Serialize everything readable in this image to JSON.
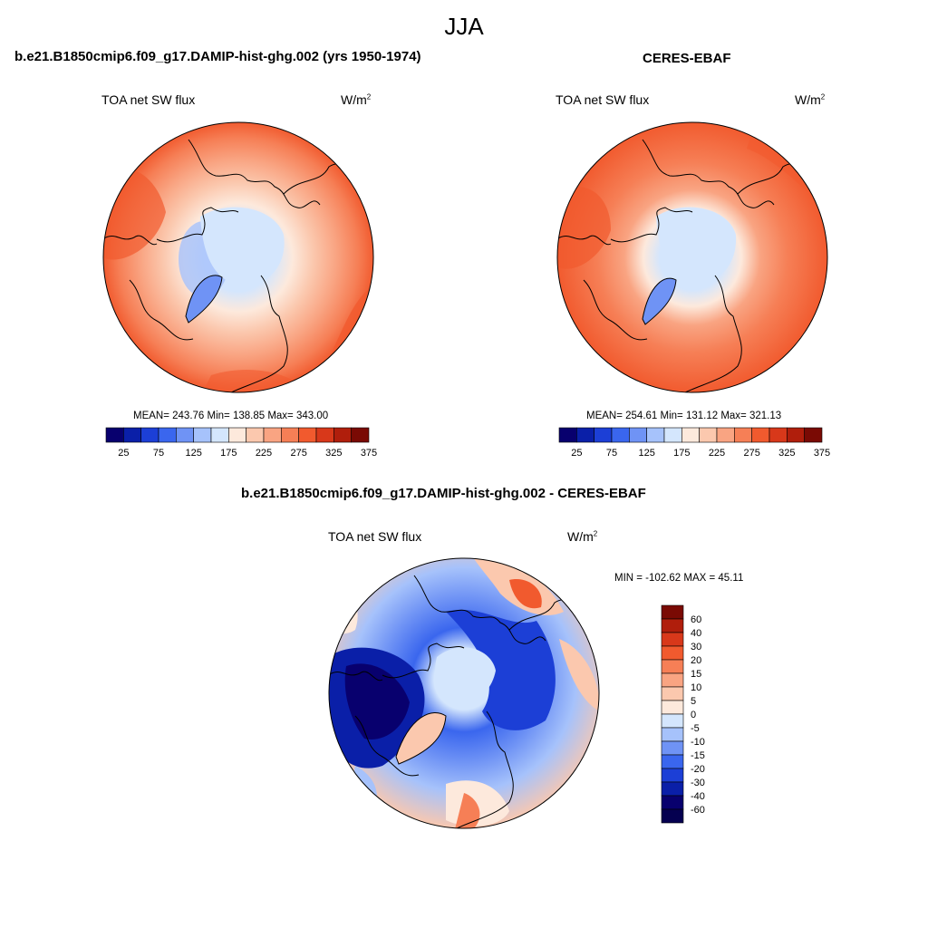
{
  "season": "JJA",
  "panels": [
    {
      "title": "b.e21.B1850cmip6.f09_g17.DAMIP-hist-ghg.002 (yrs 1950-1974)",
      "left_label": "TOA net SW flux",
      "units_base": "W/m",
      "units_exp": "2",
      "stats": "MEAN= 243.76  Min= 138.85  Max= 343.00"
    },
    {
      "title": "CERES-EBAF",
      "left_label": "TOA net SW flux",
      "units_base": "W/m",
      "units_exp": "2",
      "stats": "MEAN= 254.61  Min= 131.12  Max= 321.13"
    },
    {
      "title": "b.e21.B1850cmip6.f09_g17.DAMIP-hist-ghg.002 - CERES-EBAF",
      "left_label": "TOA net SW flux",
      "units_base": "W/m",
      "units_exp": "2",
      "stats": "MIN = -102.62 MAX =  45.11"
    }
  ],
  "colorbar_abs": {
    "tick_labels": [
      "25",
      "75",
      "125",
      "175",
      "225",
      "275",
      "325",
      "375"
    ],
    "colors": [
      "#08006e",
      "#0a1fa8",
      "#1c3fd6",
      "#3a66ee",
      "#6f93f5",
      "#a6c2fb",
      "#d4e6fd",
      "#fde9dc",
      "#fbc8ae",
      "#f9a482",
      "#f67f56",
      "#f15a2e",
      "#d8381a",
      "#b01e0c",
      "#7a0a04"
    ]
  },
  "colorbar_diff": {
    "tick_labels": [
      "60",
      "40",
      "30",
      "20",
      "15",
      "10",
      "5",
      "0",
      "-5",
      "-10",
      "-15",
      "-20",
      "-30",
      "-40",
      "-60"
    ],
    "colors": [
      "#7a0a04",
      "#b01e0c",
      "#d8381a",
      "#f15a2e",
      "#f67f56",
      "#f9a482",
      "#fbc8ae",
      "#fde9dc",
      "#d4e6fd",
      "#a6c2fb",
      "#6f93f5",
      "#3a66ee",
      "#1c3fd6",
      "#0a1fa8",
      "#08006e",
      "#050050"
    ]
  }
}
